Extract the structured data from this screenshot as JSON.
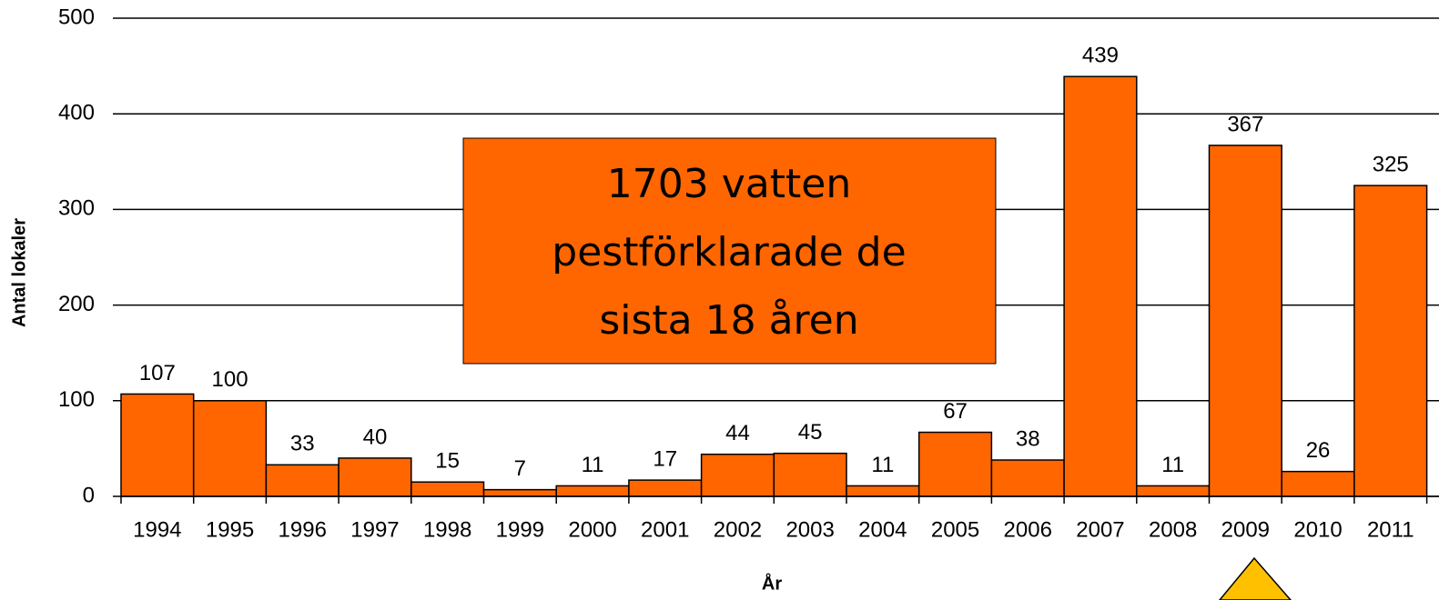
{
  "chart_data": {
    "type": "bar",
    "categories": [
      "1994",
      "1995",
      "1996",
      "1997",
      "1998",
      "1999",
      "2000",
      "2001",
      "2002",
      "2003",
      "2004",
      "2005",
      "2006",
      "2007",
      "2008",
      "2009",
      "2010",
      "2011"
    ],
    "values": [
      107,
      100,
      33,
      40,
      15,
      7,
      11,
      17,
      44,
      45,
      11,
      67,
      38,
      439,
      11,
      367,
      26,
      325
    ],
    "color": "#ff6600",
    "ylim": [
      0,
      500
    ],
    "yticks": [
      0,
      100,
      200,
      300,
      400,
      500
    ],
    "grid": true,
    "xlabel": "År",
    "ylabel": "Antal lokaler",
    "annotation": [
      "1703 vatten",
      "pestförklarade de",
      "sista 18 åren"
    ]
  }
}
